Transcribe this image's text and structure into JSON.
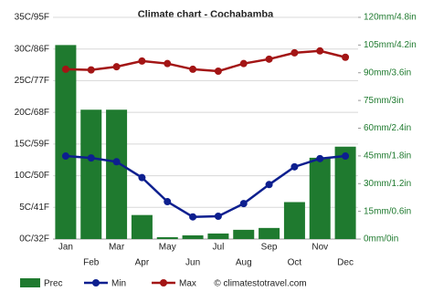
{
  "chart_data": {
    "type": "bar",
    "title": "Climate chart - Cochabamba",
    "categories": [
      "Jan",
      "Feb",
      "Mar",
      "Apr",
      "May",
      "Jun",
      "Jul",
      "Aug",
      "Sep",
      "Oct",
      "Nov",
      "Dec"
    ],
    "series": [
      {
        "name": "Prec",
        "type": "bar",
        "axis": "y2",
        "color": "#1f7a2f",
        "values": [
          105,
          70,
          70,
          13,
          1,
          2,
          3,
          5,
          6,
          20,
          44,
          50
        ]
      },
      {
        "name": "Min",
        "type": "line",
        "color": "#0d1f8f",
        "values": [
          13.1,
          12.8,
          12.2,
          9.7,
          5.9,
          3.5,
          3.6,
          5.6,
          8.6,
          11.4,
          12.7,
          13.1
        ]
      },
      {
        "name": "Max",
        "type": "line",
        "color": "#a31515",
        "values": [
          26.8,
          26.7,
          27.2,
          28.1,
          27.7,
          26.8,
          26.5,
          27.7,
          28.4,
          29.4,
          29.7,
          28.7
        ]
      }
    ],
    "ylim": [
      0,
      35
    ],
    "yticks": [
      {
        "value": 0,
        "label": "0C/32F"
      },
      {
        "value": 5,
        "label": "5C/41F"
      },
      {
        "value": 10,
        "label": "10C/50F"
      },
      {
        "value": 15,
        "label": "15C/59F"
      },
      {
        "value": 20,
        "label": "20C/68F"
      },
      {
        "value": 25,
        "label": "25C/77F"
      },
      {
        "value": 30,
        "label": "30C/86F"
      },
      {
        "value": 35,
        "label": "35C/95F"
      }
    ],
    "y2lim": [
      0,
      120
    ],
    "y2ticks": [
      {
        "value": 0,
        "label": "0mm/0in"
      },
      {
        "value": 15,
        "label": "15mm/0.6in"
      },
      {
        "value": 30,
        "label": "30mm/1.2in"
      },
      {
        "value": 45,
        "label": "45mm/1.8in"
      },
      {
        "value": 60,
        "label": "60mm/2.4in"
      },
      {
        "value": 75,
        "label": "75mm/3in"
      },
      {
        "value": 90,
        "label": "90mm/3.6in"
      },
      {
        "value": 105,
        "label": "105mm/4.2in"
      },
      {
        "value": 120,
        "label": "120mm/4.8in"
      }
    ],
    "grid": true,
    "watermark": "© climatestotravel.com"
  }
}
